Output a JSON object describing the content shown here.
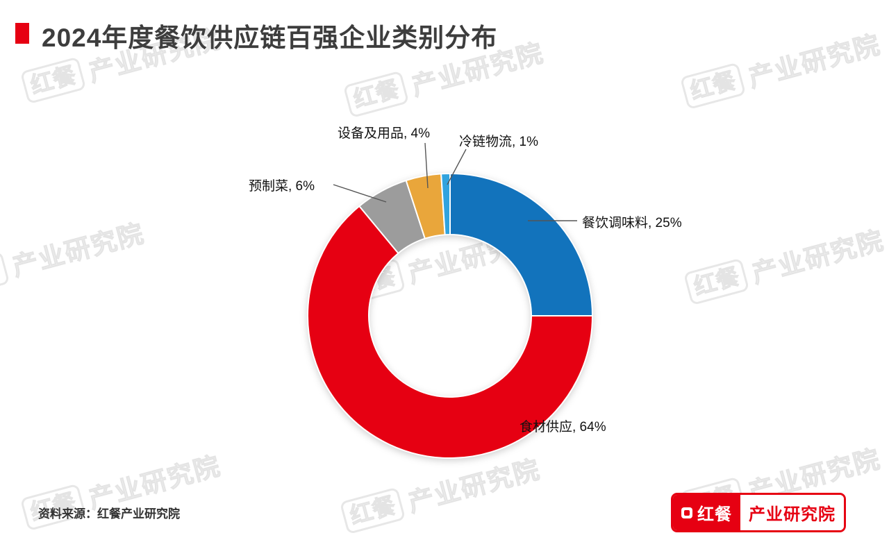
{
  "header": {
    "title": "2024年度餐饮供应链百强企业类别分布"
  },
  "chart_data": {
    "type": "pie",
    "donut": true,
    "title": "2024年度餐饮供应链百强企业类别分布",
    "start_angle_deg": 0,
    "direction": "clockwise",
    "hole_ratio": 0.57,
    "legend_position": "none",
    "series": [
      {
        "name": "餐饮调味料",
        "value": 25,
        "color": "#1273BC",
        "label": "餐饮调味料, 25%"
      },
      {
        "name": "食材供应",
        "value": 64,
        "color": "#E60012",
        "label": "食材供应, 64%"
      },
      {
        "name": "预制菜",
        "value": 6,
        "color": "#9C9C9C",
        "label": "预制菜, 6%"
      },
      {
        "name": "设备及用品",
        "value": 4,
        "color": "#E9A63B",
        "label": "设备及用品, 4%"
      },
      {
        "name": "冷链物流",
        "value": 1,
        "color": "#31A3DE",
        "label": "冷链物流, 1%"
      }
    ]
  },
  "watermark": {
    "mark": "红餐",
    "name": "产业研究院"
  },
  "footer": {
    "source": "资料来源：红餐产业研究院",
    "logo_primary": "红餐",
    "logo_secondary": "产业研究院"
  }
}
